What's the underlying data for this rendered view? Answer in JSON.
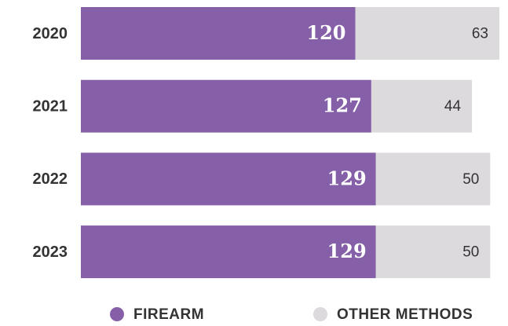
{
  "chart_data": {
    "type": "bar",
    "orientation": "horizontal",
    "stacked": true,
    "categories": [
      "2020",
      "2021",
      "2022",
      "2023"
    ],
    "series": [
      {
        "name": "FIREARM",
        "color": "#8560a8",
        "values": [
          120,
          127,
          129,
          129
        ]
      },
      {
        "name": "OTHER METHODS",
        "color": "#dcdadd",
        "values": [
          63,
          44,
          50,
          50
        ]
      }
    ],
    "legend": "bottom"
  }
}
